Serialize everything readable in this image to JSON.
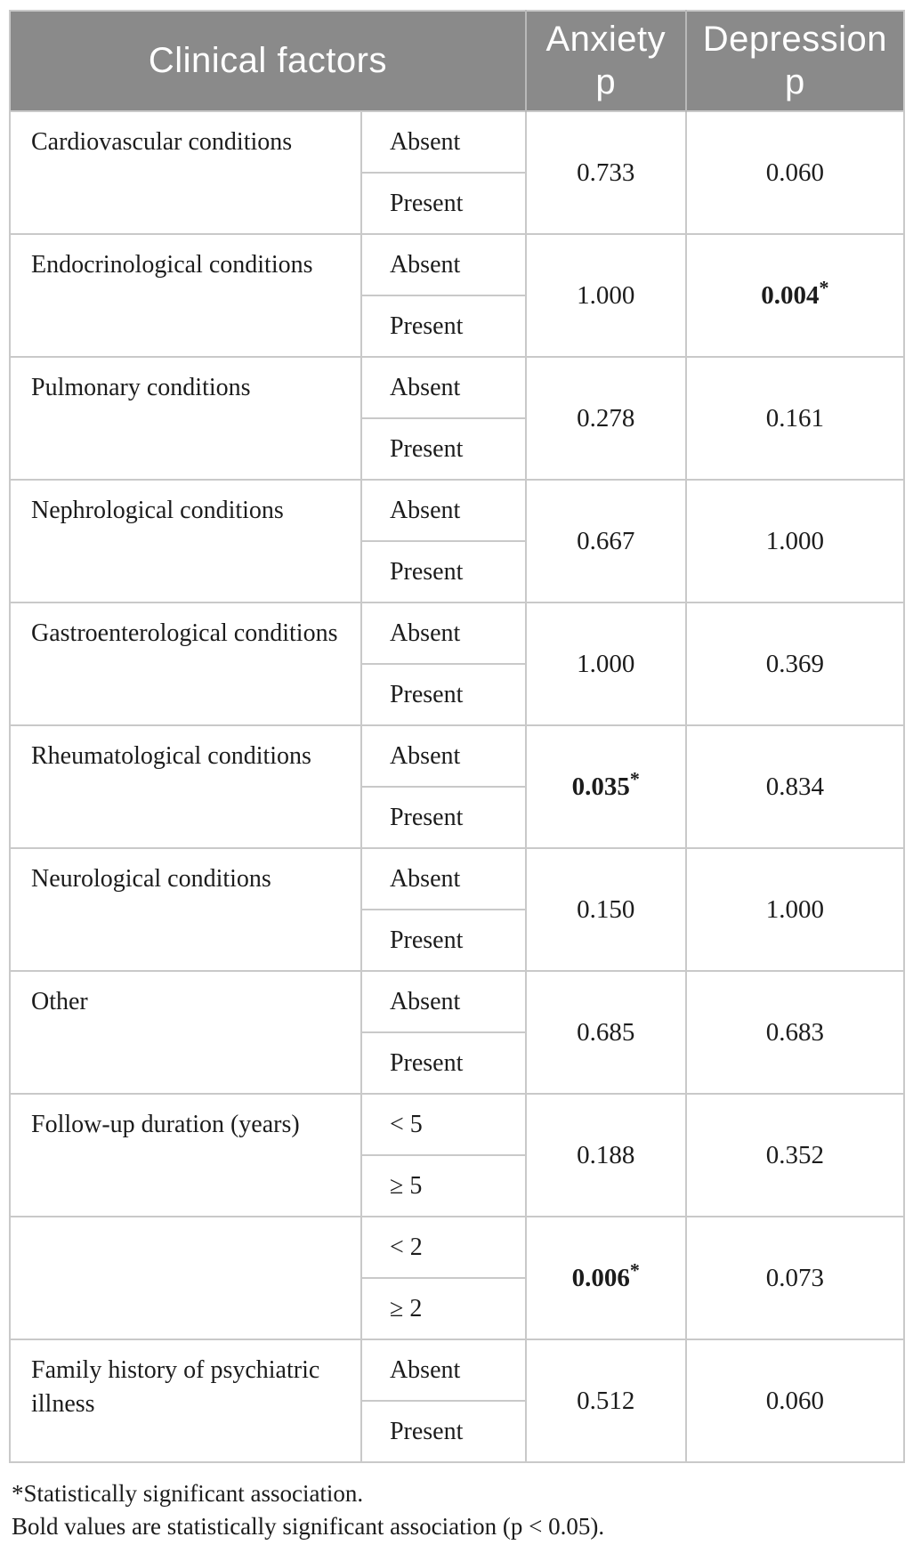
{
  "table": {
    "header": {
      "clinical_factors": "Clinical factors",
      "anxiety": {
        "line1": "Anxiety",
        "line2": "p"
      },
      "depression": {
        "line1": "Depression",
        "line2": "p"
      }
    },
    "rows": [
      {
        "factor": "Cardiovascular conditions",
        "levels": [
          "Absent",
          "Present"
        ],
        "anxiety_p": "0.733",
        "anxiety_significant": false,
        "depression_p": "0.060",
        "depression_significant": false
      },
      {
        "factor": "Endocrinological conditions",
        "levels": [
          "Absent",
          "Present"
        ],
        "anxiety_p": "1.000",
        "anxiety_significant": false,
        "depression_p": "0.004*",
        "depression_significant": true
      },
      {
        "factor": "Pulmonary conditions",
        "levels": [
          "Absent",
          "Present"
        ],
        "anxiety_p": "0.278",
        "anxiety_significant": false,
        "depression_p": "0.161",
        "depression_significant": false
      },
      {
        "factor": "Nephrological conditions",
        "levels": [
          "Absent",
          "Present"
        ],
        "anxiety_p": "0.667",
        "anxiety_significant": false,
        "depression_p": "1.000",
        "depression_significant": false
      },
      {
        "factor": "Gastroenterological conditions",
        "levels": [
          "Absent",
          "Present"
        ],
        "anxiety_p": "1.000",
        "anxiety_significant": false,
        "depression_p": "0.369",
        "depression_significant": false
      },
      {
        "factor": "Rheumatological conditions",
        "levels": [
          "Absent",
          "Present"
        ],
        "anxiety_p": "0.035*",
        "anxiety_significant": true,
        "depression_p": "0.834",
        "depression_significant": false
      },
      {
        "factor": "Neurological conditions",
        "levels": [
          "Absent",
          "Present"
        ],
        "anxiety_p": "0.150",
        "anxiety_significant": false,
        "depression_p": "1.000",
        "depression_significant": false
      },
      {
        "factor": "Other",
        "levels": [
          "Absent",
          "Present"
        ],
        "anxiety_p": "0.685",
        "anxiety_significant": false,
        "depression_p": "0.683",
        "depression_significant": false
      },
      {
        "factor": "Follow-up duration (years)",
        "levels": [
          "< 5",
          "≥ 5"
        ],
        "anxiety_p": "0.188",
        "anxiety_significant": false,
        "depression_p": "0.352",
        "depression_significant": false
      },
      {
        "factor": "",
        "levels": [
          "< 2",
          "≥ 2"
        ],
        "anxiety_p": "0.006*",
        "anxiety_significant": true,
        "depression_p": "0.073",
        "depression_significant": false
      },
      {
        "factor": "Family history of psychiatric illness",
        "levels": [
          "Absent",
          "Present"
        ],
        "anxiety_p": "0.512",
        "anxiety_significant": false,
        "depression_p": "0.060",
        "depression_significant": false
      }
    ],
    "footnotes": [
      "*Statistically significant association.",
      "Bold values are statistically significant association (p < 0.05)."
    ]
  },
  "colors": {
    "header_bg": "#8a8a8a",
    "header_text": "#ffffff",
    "border": "#c9c9c9",
    "text": "#1c1c1c"
  }
}
